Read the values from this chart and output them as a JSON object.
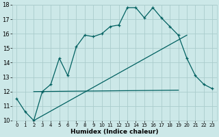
{
  "xlabel": "Humidex (Indice chaleur)",
  "ylabel": "",
  "xlim": [
    -0.5,
    23.5
  ],
  "ylim": [
    10,
    18
  ],
  "xticks": [
    0,
    1,
    2,
    3,
    4,
    5,
    6,
    7,
    8,
    9,
    10,
    11,
    12,
    13,
    14,
    15,
    16,
    17,
    18,
    19,
    20,
    21,
    22,
    23
  ],
  "yticks": [
    10,
    11,
    12,
    13,
    14,
    15,
    16,
    17,
    18
  ],
  "bg_color": "#cce8e8",
  "grid_color": "#aacccc",
  "line_color": "#006060",
  "line1_x": [
    0,
    1,
    2,
    3,
    4,
    5,
    6,
    7,
    8,
    9,
    10,
    11,
    12,
    13,
    14,
    15,
    16,
    17,
    18,
    19,
    20,
    21,
    22,
    23
  ],
  "line1_y": [
    11.5,
    10.6,
    10.0,
    12.0,
    12.5,
    14.3,
    13.1,
    15.1,
    15.9,
    15.8,
    16.0,
    16.5,
    16.6,
    17.8,
    17.8,
    17.1,
    17.8,
    17.1,
    16.5,
    15.9,
    14.3,
    13.1,
    12.5,
    12.2
  ],
  "line2_x": [
    2,
    19
  ],
  "line2_y": [
    12.0,
    12.1
  ],
  "line3_x": [
    2,
    20
  ],
  "line3_y": [
    10.0,
    15.9
  ],
  "figwidth": 3.2,
  "figheight": 2.0,
  "dpi": 100
}
